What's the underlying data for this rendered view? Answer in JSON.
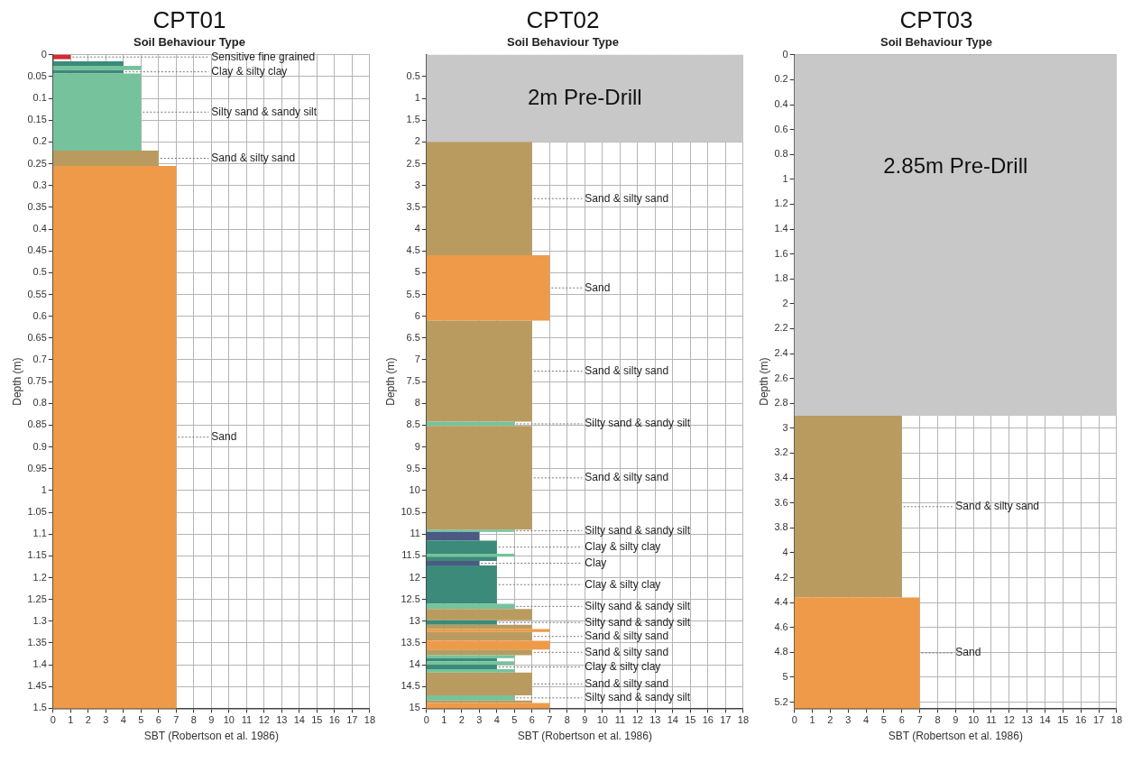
{
  "chart_data": [
    {
      "type": "histogram",
      "orientation": "horizontal",
      "title": "CPT01",
      "subtitle": "Soil Behaviour Type",
      "xlabel": "SBT (Robertson et al. 1986)",
      "ylabel": "Depth (m)",
      "bins": [
        0,
        0.01,
        0.015,
        0.025,
        0.035,
        0.043,
        0.22,
        0.255,
        1.5
      ],
      "values": [
        1,
        null,
        4,
        5,
        4,
        5,
        6,
        7
      ],
      "colors": [
        "#d7282f",
        null,
        "#3b8a7a",
        "#76c29c",
        "#3b8a7a",
        "#76c29c",
        "#b99b5f",
        "#ef9a48"
      ],
      "xlim": [
        0,
        18
      ],
      "xticks": [
        0,
        1,
        2,
        3,
        4,
        5,
        6,
        7,
        8,
        9,
        10,
        11,
        12,
        13,
        14,
        15,
        16,
        17,
        18
      ],
      "ylim": [
        1.5,
        0
      ],
      "yticks": [
        0,
        0.05,
        0.1,
        0.15,
        0.2,
        0.25,
        0.3,
        0.35,
        0.4,
        0.45,
        0.5,
        0.55,
        0.6,
        0.65,
        0.7,
        0.75,
        0.8,
        0.85,
        0.9,
        0.95,
        1,
        1.05,
        1.1,
        1.15,
        1.2,
        1.25,
        1.3,
        1.35,
        1.4,
        1.45,
        1.5
      ],
      "grid": true,
      "annotations": [
        {
          "text": "Sensitive fine grained",
          "x": 1,
          "y": 0.005
        },
        {
          "text": "Clay & silty clay",
          "x": 4,
          "y": 0.039
        },
        {
          "text": "Silty sand & sandy silt",
          "x": 5,
          "y": 0.1315
        },
        {
          "text": "Sand & silty sand",
          "x": 6,
          "y": 0.2375
        },
        {
          "text": "Sand",
          "x": 7,
          "y": 0.8775
        }
      ]
    },
    {
      "type": "histogram",
      "orientation": "horizontal",
      "title": "CPT02",
      "subtitle": "Soil Behaviour Type",
      "xlabel": "SBT (Robertson et al. 1986)",
      "ylabel": "Depth (m)",
      "bins": [
        2,
        4.6,
        6.1,
        8.42,
        8.52,
        10.9,
        10.95,
        11.15,
        11.45,
        11.52,
        11.62,
        11.72,
        12.6,
        12.72,
        12.98,
        13.08,
        13.18,
        13.25,
        13.45,
        13.65,
        13.78,
        13.85,
        13.92,
        14.0,
        14.1,
        14.18,
        14.7,
        14.82,
        14.88,
        15
      ],
      "values": [
        6,
        7,
        6,
        5,
        6,
        5,
        3,
        4,
        5,
        4,
        3,
        4,
        5,
        6,
        4,
        6,
        7,
        6,
        7,
        6,
        5,
        4,
        5,
        4,
        5,
        6,
        5,
        6,
        7
      ],
      "colors": [
        "#b99b5f",
        "#ef9a48",
        "#b99b5f",
        "#76c29c",
        "#b99b5f",
        "#76c29c",
        "#4a5a83",
        "#3b8a7a",
        "#76c29c",
        "#3b8a7a",
        "#4a5a83",
        "#3b8a7a",
        "#76c29c",
        "#b99b5f",
        "#3b8a7a",
        "#b99b5f",
        "#ef9a48",
        "#b99b5f",
        "#ef9a48",
        "#b99b5f",
        "#76c29c",
        "#3b8a7a",
        "#76c29c",
        "#3b8a7a",
        "#76c29c",
        "#b99b5f",
        "#76c29c",
        "#b99b5f",
        "#ef9a48"
      ],
      "xlim": [
        0,
        18
      ],
      "xticks": [
        0,
        1,
        2,
        3,
        4,
        5,
        6,
        7,
        8,
        9,
        10,
        11,
        12,
        13,
        14,
        15,
        16,
        17,
        18
      ],
      "ylim": [
        15,
        0
      ],
      "yticks": [
        0.5,
        1,
        1.5,
        2,
        2.5,
        3,
        3.5,
        4,
        4.5,
        5,
        5.5,
        6,
        6.5,
        7,
        7.5,
        8,
        8.5,
        9,
        9.5,
        10,
        10.5,
        11,
        11.5,
        12,
        12.5,
        13,
        13.5,
        14,
        14.5,
        15
      ],
      "grid": true,
      "bands": [
        {
          "axis": "y",
          "from": 0,
          "to": 2,
          "label": "2m Pre-Drill",
          "color": "#c8c8c8"
        }
      ],
      "annotations": [
        {
          "text": "Sand & silty sand",
          "x": 6,
          "y": 3.3
        },
        {
          "text": "Sand",
          "x": 7,
          "y": 5.35
        },
        {
          "text": "Sand & silty sand",
          "x": 6,
          "y": 7.26
        },
        {
          "text": "Silty sand & sandy silt",
          "x": 5,
          "y": 8.47
        },
        {
          "text": "Sand & silty sand",
          "x": 6,
          "y": 9.71
        },
        {
          "text": "Silty sand & sandy silt",
          "x": 5,
          "y": 10.925
        },
        {
          "text": "Clay & silty clay",
          "x": 4,
          "y": 11.3
        },
        {
          "text": "Clay",
          "x": 3,
          "y": 11.67
        },
        {
          "text": "Clay & silty clay",
          "x": 4,
          "y": 12.16
        },
        {
          "text": "Silty sand & sandy silt",
          "x": 5,
          "y": 12.66
        },
        {
          "text": "Silty sand & sandy silt",
          "x": 4,
          "y": 13.03
        },
        {
          "text": "Sand & silty sand",
          "x": 6,
          "y": 13.35
        },
        {
          "text": "Sand & silty sand",
          "x": 6,
          "y": 13.715
        },
        {
          "text": "Clay & silty clay",
          "x": 4,
          "y": 14.05
        },
        {
          "text": "Sand & silty sand",
          "x": 6,
          "y": 14.44
        },
        {
          "text": "Silty sand & sandy silt",
          "x": 5,
          "y": 14.76
        }
      ]
    },
    {
      "type": "histogram",
      "orientation": "horizontal",
      "title": "CPT03",
      "subtitle": "Soil Behaviour Type",
      "xlabel": "SBT (Robertson et al. 1986)",
      "ylabel": "Depth (m)",
      "bins": [
        2.9,
        4.36,
        5.25
      ],
      "values": [
        6,
        7
      ],
      "colors": [
        "#b99b5f",
        "#ef9a48"
      ],
      "xlim": [
        0,
        18
      ],
      "xticks": [
        0,
        1,
        2,
        3,
        4,
        5,
        6,
        7,
        8,
        9,
        10,
        11,
        12,
        13,
        14,
        15,
        16,
        17,
        18
      ],
      "ylim": [
        5.25,
        0
      ],
      "yticks": [
        0,
        0.2,
        0.4,
        0.6,
        0.8,
        1,
        1.2,
        1.4,
        1.6,
        1.8,
        2,
        2.2,
        2.4,
        2.6,
        2.8,
        3,
        3.2,
        3.4,
        3.6,
        3.8,
        4,
        4.2,
        4.4,
        4.6,
        4.8,
        5,
        5.2
      ],
      "grid": true,
      "bands": [
        {
          "axis": "y",
          "from": 0,
          "to": 2.9,
          "label": "2.85m Pre-Drill",
          "color": "#c8c8c8"
        }
      ],
      "annotations": [
        {
          "text": "Sand & silty sand",
          "x": 6,
          "y": 3.63
        },
        {
          "text": "Sand",
          "x": 7,
          "y": 4.805
        }
      ]
    }
  ]
}
